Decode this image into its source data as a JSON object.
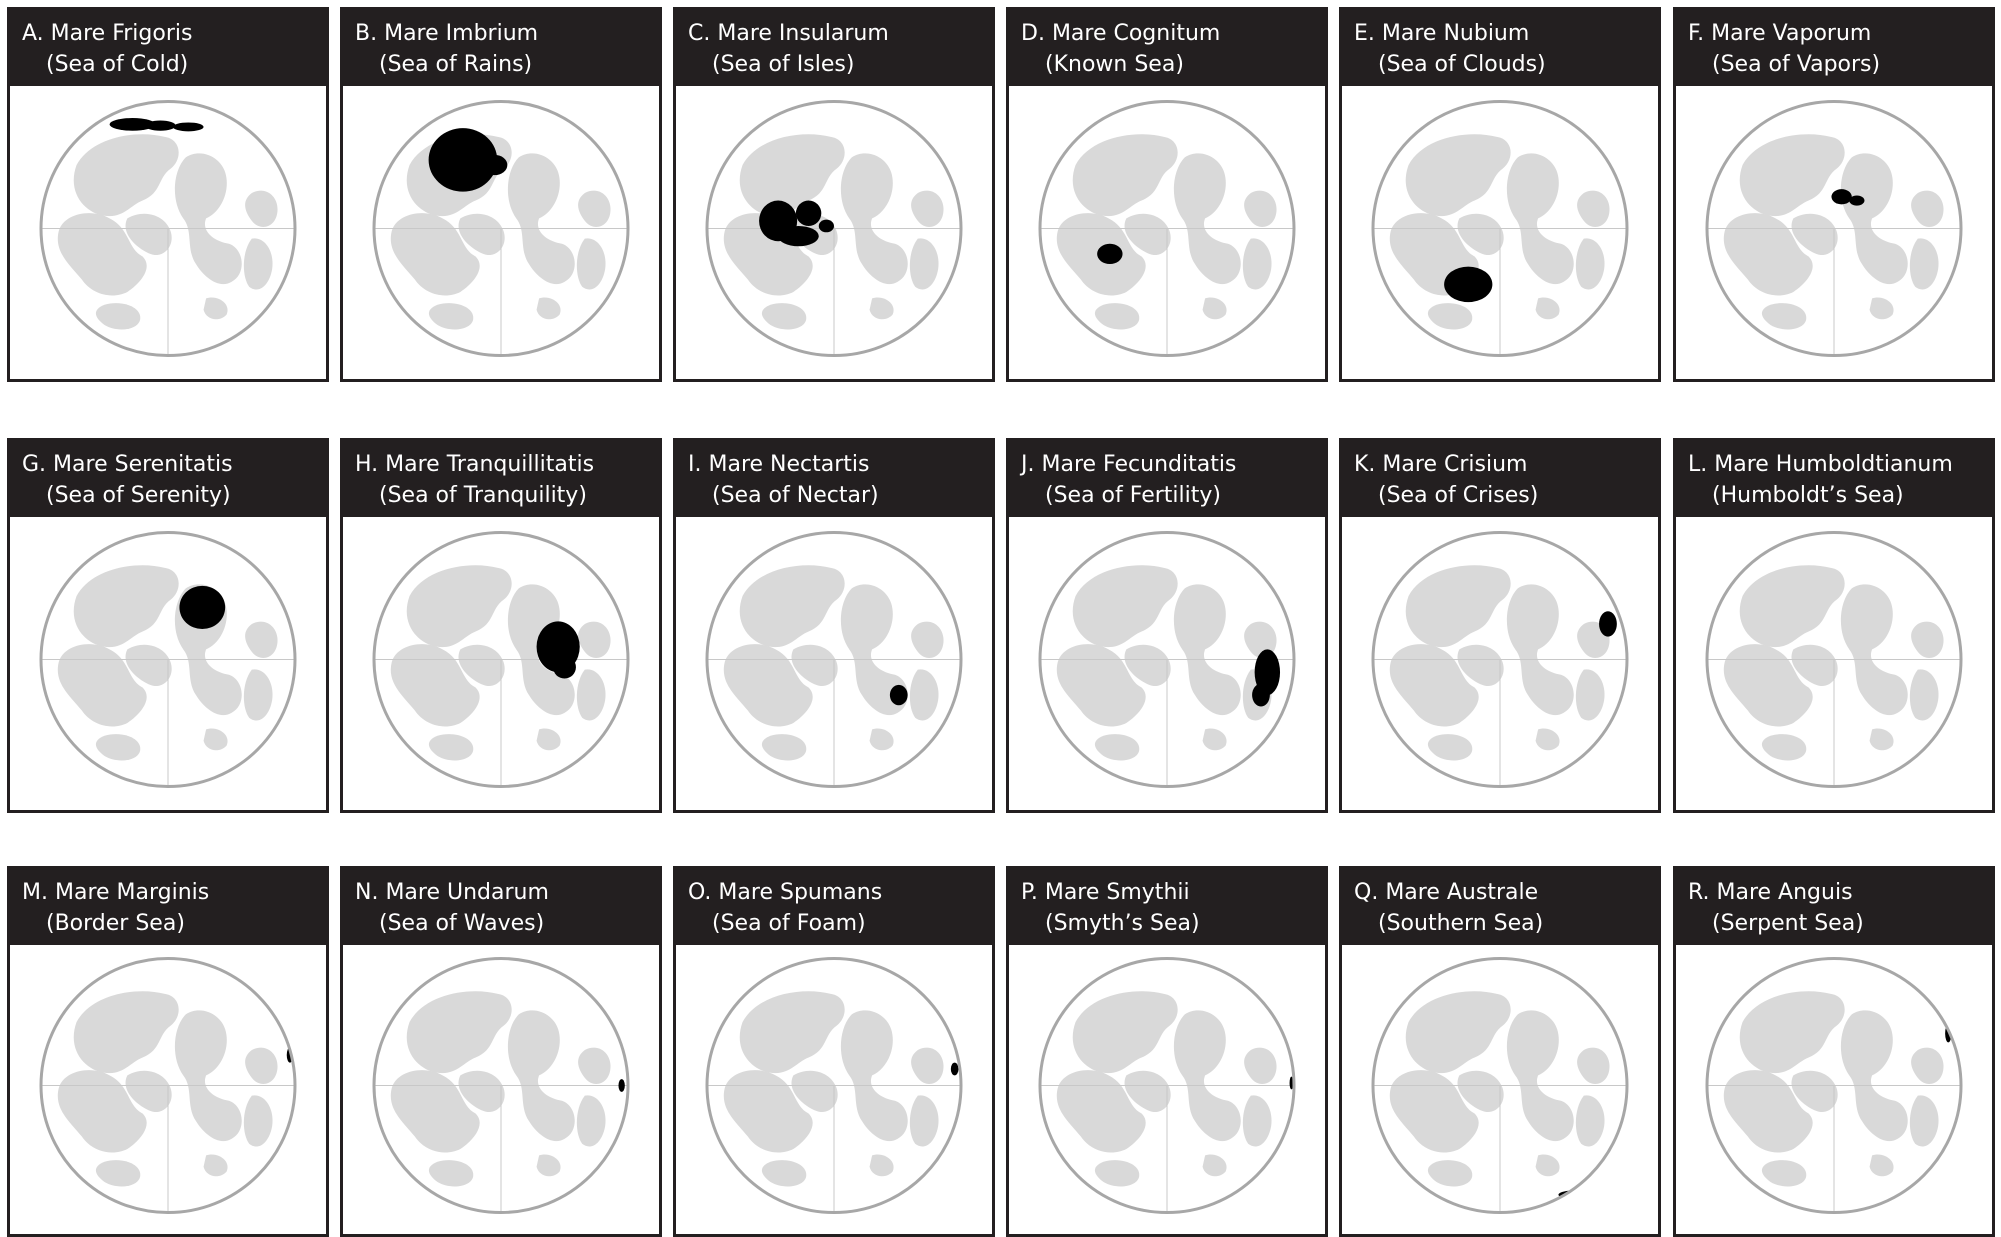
{
  "panels": [
    {
      "letter": "A.",
      "name": "Mare Frigoris",
      "subtitle": "(Sea of Cold)"
    },
    {
      "letter": "B.",
      "name": "Mare Imbrium",
      "subtitle": "(Sea of Rains)"
    },
    {
      "letter": "C.",
      "name": "Mare Insularum",
      "subtitle": "(Sea of Isles)"
    },
    {
      "letter": "D.",
      "name": "Mare Cognitum",
      "subtitle": "(Known Sea)"
    },
    {
      "letter": "E.",
      "name": "Mare Nubium",
      "subtitle": "(Sea of Clouds)"
    },
    {
      "letter": "F.",
      "name": "Mare Vaporum",
      "subtitle": "(Sea of Vapors)"
    },
    {
      "letter": "G.",
      "name": "Mare Serenitatis",
      "subtitle": "(Sea of Serenity)"
    },
    {
      "letter": "H.",
      "name": "Mare Tranquillitatis",
      "subtitle": "(Sea of Tranquility)"
    },
    {
      "letter": "I.",
      "name": "Mare Nectartis",
      "subtitle": "(Sea of Nectar)"
    },
    {
      "letter": "J.",
      "name": "Mare Fecunditatis",
      "subtitle": "(Sea of Fertility)"
    },
    {
      "letter": "K.",
      "name": "Mare Crisium",
      "subtitle": "(Sea of Crises)"
    },
    {
      "letter": "L.",
      "name": "Mare Humboldtianum",
      "subtitle": "(Humboldt’s Sea)"
    },
    {
      "letter": "M.",
      "name": "Mare Marginis",
      "subtitle": "(Border Sea)"
    },
    {
      "letter": "N.",
      "name": "Mare Undarum",
      "subtitle": "(Sea of Waves)"
    },
    {
      "letter": "O.",
      "name": "Mare Spumans",
      "subtitle": "(Sea of Foam)"
    },
    {
      "letter": "P.",
      "name": "Mare Smythii",
      "subtitle": "(Smyth’s Sea)"
    },
    {
      "letter": "Q.",
      "name": "Mare Australe",
      "subtitle": "(Southern Sea)"
    },
    {
      "letter": "R.",
      "name": "Mare Anguis",
      "subtitle": "(Serpent Sea)"
    }
  ],
  "colors": {
    "header_background": "#231f20",
    "header_text": "#ffffff",
    "moon_base": "#ffffff",
    "moon_maria": "#d9d9d9",
    "moon_outline": "#a7a7a7",
    "highlight": "#000000"
  }
}
